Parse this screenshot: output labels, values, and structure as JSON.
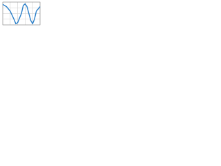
{
  "chart_data": {
    "type": "line",
    "x": [
      0,
      1,
      2,
      3,
      3.5,
      4,
      5,
      5.5,
      6,
      6.5,
      7,
      7.5,
      8,
      8.5,
      9,
      10
    ],
    "series": [
      {
        "color": "#2a7fc9",
        "values": [
          0.8,
          0.6,
          0.2,
          -0.5,
          -0.9,
          -0.8,
          0,
          0.7,
          0.85,
          0.6,
          0,
          -0.6,
          -0.9,
          -0.5,
          0.2,
          0.6
        ]
      }
    ],
    "xlim": [
      0,
      10
    ],
    "ylim": [
      -1,
      1
    ],
    "xticks": [
      0,
      2,
      4,
      6,
      8,
      10
    ],
    "yticks": [
      -1,
      -0.5,
      0,
      0.5,
      1
    ],
    "grid": true
  }
}
